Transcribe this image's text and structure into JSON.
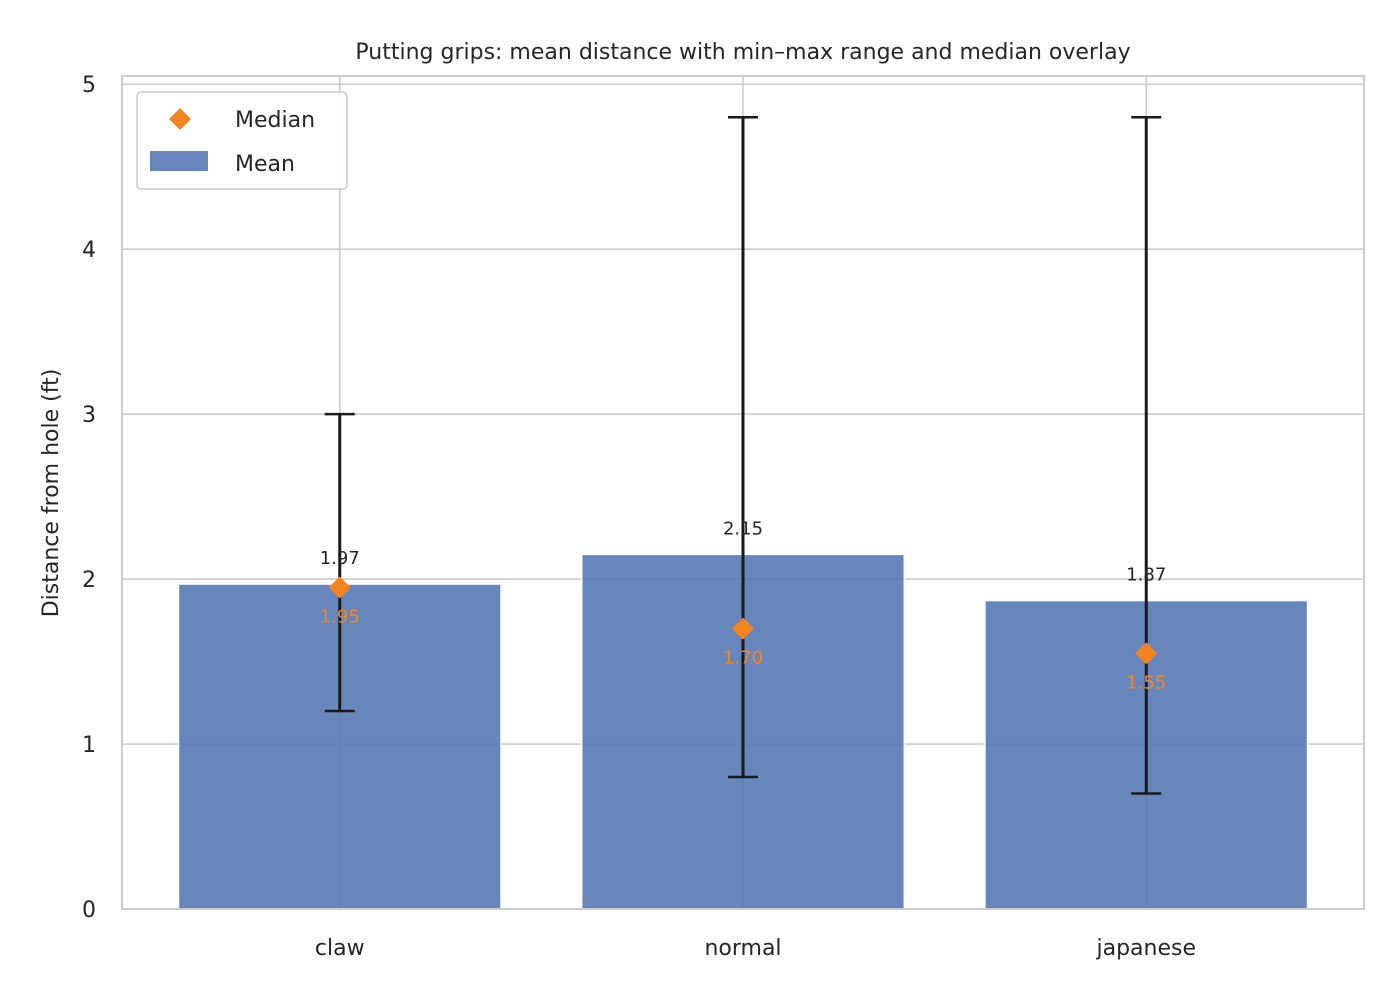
{
  "chart_data": {
    "type": "bar",
    "title": "Putting grips: mean distance with min–max range and median overlay",
    "xlabel": "",
    "ylabel": "Distance from hole (ft)",
    "categories": [
      "claw",
      "normal",
      "japanese"
    ],
    "series": [
      {
        "name": "Mean",
        "values": [
          1.97,
          2.15,
          1.87
        ],
        "labels": [
          "1.97",
          "2.15",
          "1.87"
        ],
        "color": "#4c72b0"
      },
      {
        "name": "Median",
        "values": [
          1.95,
          1.7,
          1.55
        ],
        "labels": [
          "1.95",
          "1.70",
          "1.55"
        ],
        "color": "#f5841f",
        "marker": "diamond"
      }
    ],
    "range_min": [
      1.2,
      0.8,
      0.7
    ],
    "range_max": [
      3.0,
      4.8,
      4.8
    ],
    "ylim": [
      0,
      5.05
    ],
    "yticks": [
      "0",
      "1",
      "2",
      "3",
      "4",
      "5"
    ],
    "grid": true,
    "legend_position": "top-left",
    "errorbar_color": "#1a1a1a"
  }
}
